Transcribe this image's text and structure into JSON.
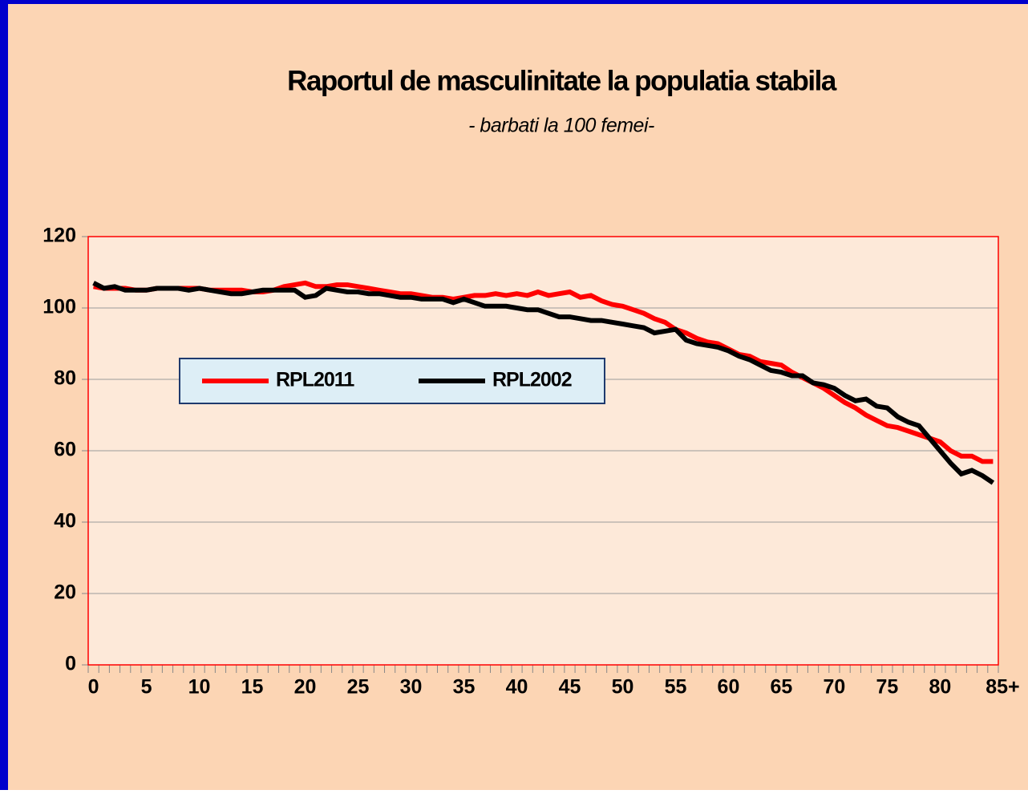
{
  "chart_data": {
    "type": "line",
    "title": "Raportul de masculinitate la populatia stabila",
    "subtitle": "- barbati la 100 femei-",
    "categories": [
      "0",
      null,
      null,
      null,
      null,
      "5",
      null,
      null,
      null,
      null,
      "10",
      null,
      null,
      null,
      null,
      "15",
      null,
      null,
      null,
      null,
      "20",
      null,
      null,
      null,
      null,
      "25",
      null,
      null,
      null,
      null,
      "30",
      null,
      null,
      null,
      null,
      "35",
      null,
      null,
      null,
      null,
      "40",
      null,
      null,
      null,
      null,
      "45",
      null,
      null,
      null,
      null,
      "50",
      null,
      null,
      null,
      null,
      "55",
      null,
      null,
      null,
      null,
      "60",
      null,
      null,
      null,
      null,
      "65",
      null,
      null,
      null,
      null,
      "70",
      null,
      null,
      null,
      null,
      "75",
      null,
      null,
      null,
      null,
      "80",
      null,
      null,
      null,
      null,
      "85+"
    ],
    "series": [
      {
        "name": "RPL2011",
        "color": "#ff0000",
        "values": [
          106,
          105.5,
          105.5,
          105.5,
          105,
          105,
          105.5,
          105.5,
          105.5,
          105.5,
          105.5,
          105,
          105,
          105,
          105,
          104.5,
          104.5,
          105,
          106,
          106.5,
          107,
          106,
          106,
          106.5,
          106.5,
          106,
          105.5,
          105,
          104.5,
          104,
          104,
          103.5,
          103,
          103,
          102.5,
          103,
          103.5,
          103.5,
          104,
          103.5,
          104,
          103.5,
          104.5,
          103.5,
          104,
          104.5,
          103,
          103.5,
          102,
          101,
          100.5,
          99.5,
          98.5,
          97,
          96,
          94,
          93,
          91.5,
          90.5,
          90,
          88.5,
          87,
          86.5,
          85,
          84.5,
          84,
          82,
          80.5,
          79,
          77.5,
          75.5,
          73.5,
          72,
          70,
          68.5,
          67,
          66.5,
          65.5,
          64.5,
          63.5,
          62.5,
          60,
          58.5,
          58.5,
          57,
          57
        ]
      },
      {
        "name": "RPL2002",
        "color": "#000000",
        "values": [
          107,
          105.5,
          106,
          105,
          105,
          105,
          105.5,
          105.5,
          105.5,
          105,
          105.5,
          105,
          104.5,
          104,
          104,
          104.5,
          105,
          105,
          105,
          105,
          103,
          103.5,
          105.5,
          105,
          104.5,
          104.5,
          104,
          104,
          103.5,
          103,
          103,
          102.5,
          102.5,
          102.5,
          101.5,
          102.5,
          101.5,
          100.5,
          100.5,
          100.5,
          100,
          99.5,
          99.5,
          98.5,
          97.5,
          97.5,
          97,
          96.5,
          96.5,
          96,
          95.5,
          95,
          94.5,
          93,
          93.5,
          94,
          91,
          90,
          89.5,
          89,
          88,
          86.5,
          85.5,
          84,
          82.5,
          82,
          81,
          81,
          79,
          78.5,
          77.5,
          75.5,
          74,
          74.5,
          72.5,
          72,
          69.5,
          68,
          67,
          63.5,
          60,
          56.5,
          53.5,
          54.5,
          53,
          51
        ]
      }
    ],
    "ylim": [
      0,
      120
    ],
    "yticks": [
      0,
      20,
      40,
      60,
      80,
      100,
      120
    ],
    "grid": true
  }
}
